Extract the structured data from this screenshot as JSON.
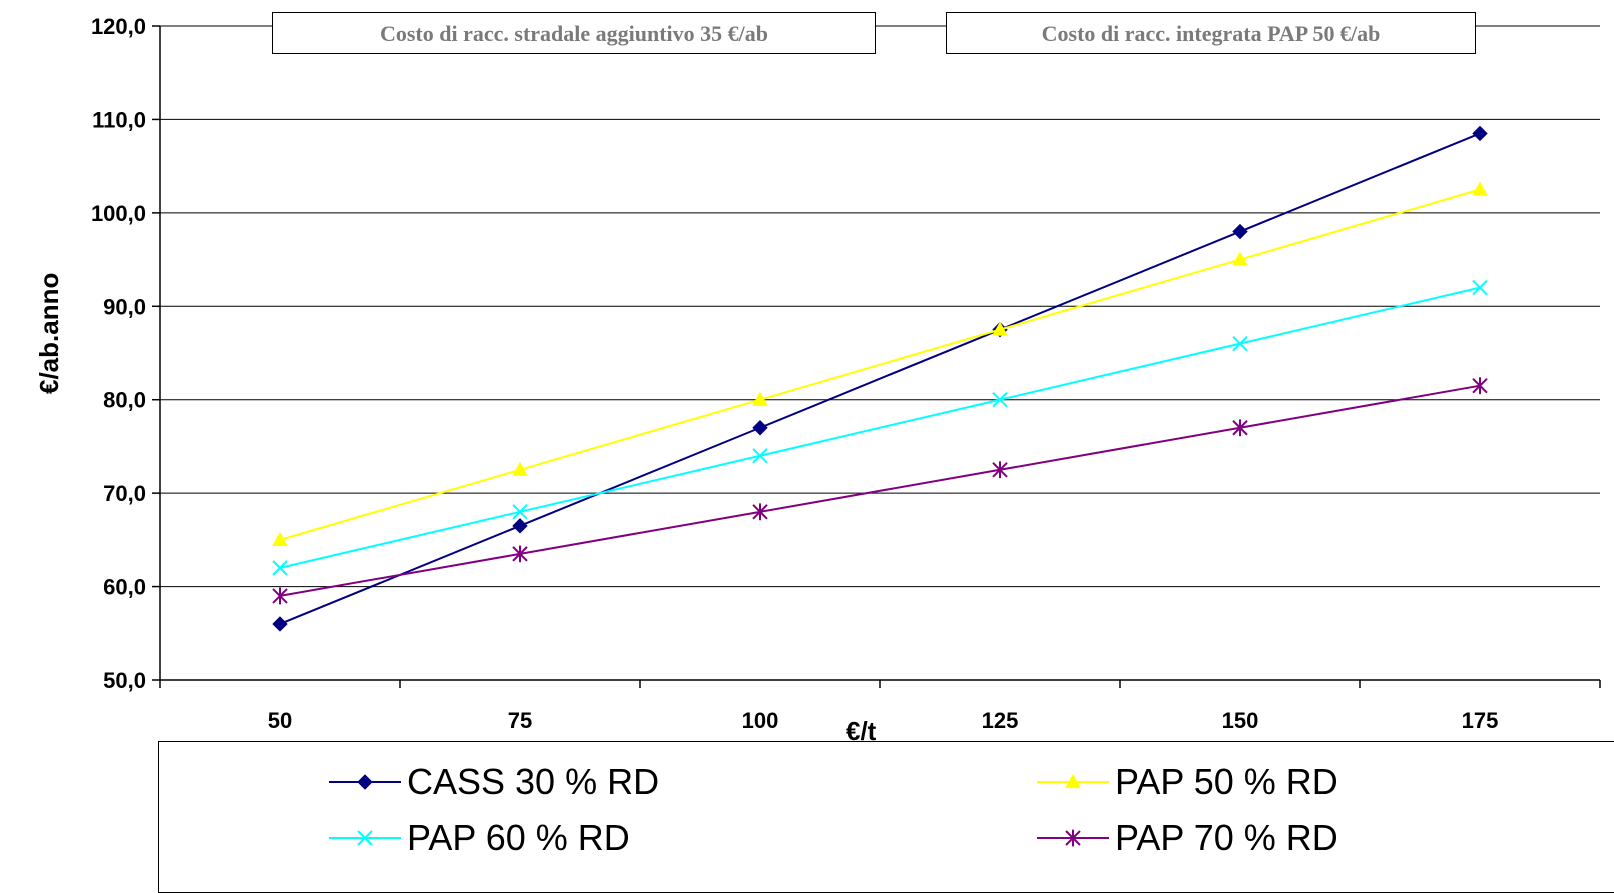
{
  "chart_data": {
    "type": "line",
    "xlabel": "€/t",
    "ylabel": "€/ab.anno",
    "x": [
      50,
      75,
      100,
      125,
      150,
      175
    ],
    "categories": [
      "50",
      "75",
      "100",
      "125",
      "150",
      "175"
    ],
    "ylim": [
      50,
      120
    ],
    "yticks": [
      "50,0",
      "60,0",
      "70,0",
      "80,0",
      "90,0",
      "100,0",
      "110,0",
      "120,0"
    ],
    "grid": "horizontal",
    "legend_position": "bottom",
    "annotations": [
      "Costo di racc. stradale aggiuntivo 35 €/ab",
      "Costo di racc. integrata PAP 50 €/ab"
    ],
    "series": [
      {
        "name": "CASS 30 % RD",
        "color": "#000080",
        "marker": "diamond",
        "values": [
          56.0,
          66.5,
          77.0,
          87.5,
          98.0,
          108.5
        ]
      },
      {
        "name": "PAP 50 % RD",
        "color": "#ffff00",
        "marker": "triangle",
        "values": [
          65.0,
          72.5,
          80.0,
          87.5,
          95.0,
          102.5
        ]
      },
      {
        "name": "PAP 60 % RD",
        "color": "#00ffff",
        "marker": "x",
        "values": [
          62.0,
          68.0,
          74.0,
          80.0,
          86.0,
          92.0
        ]
      },
      {
        "name": "PAP 70 % RD",
        "color": "#800080",
        "marker": "star",
        "values": [
          59.0,
          63.5,
          68.0,
          72.5,
          77.0,
          81.5
        ]
      }
    ]
  }
}
